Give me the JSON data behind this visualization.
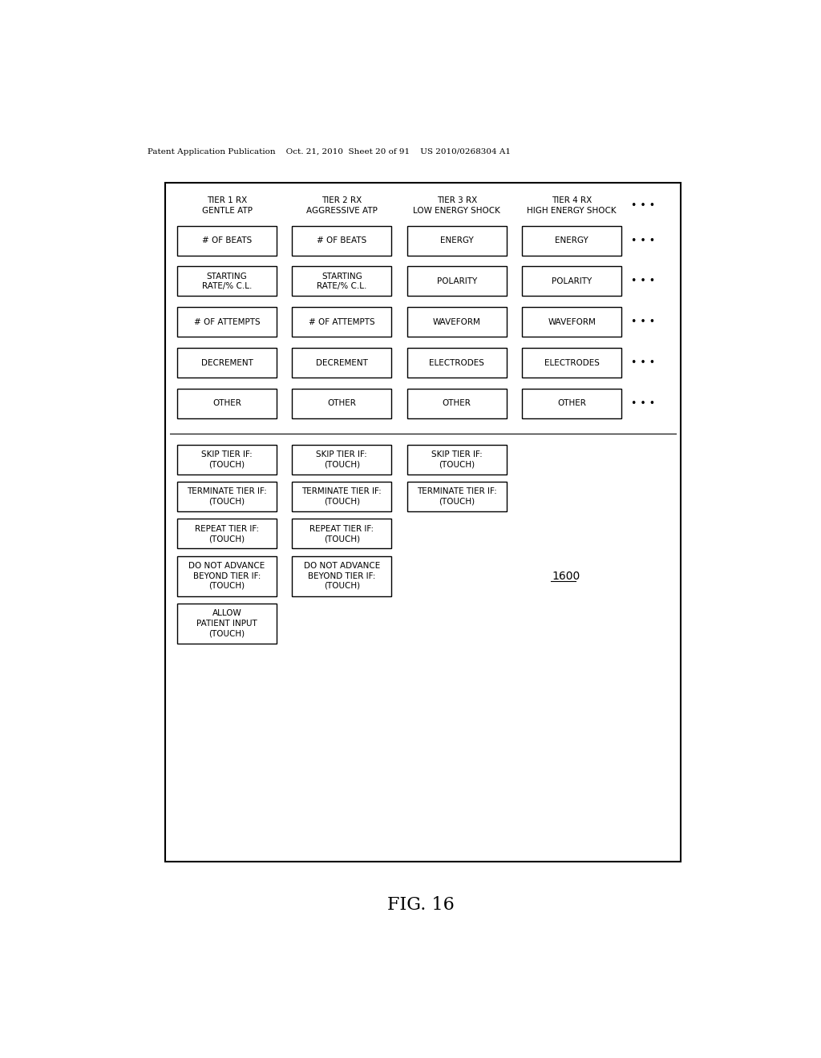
{
  "title": "FIG. 16",
  "figure_number": "1600",
  "header": "Patent Application Publication    Oct. 21, 2010  Sheet 20 of 91    US 2010/0268304 A1",
  "background_color": "#ffffff",
  "text_color": "#000000",
  "col_headers": [
    "TIER 1 RX\nGENTLE ATP",
    "TIER 2 RX\nAGGRESSIVE ATP",
    "TIER 3 RX\nLOW ENERGY SHOCK",
    "TIER 4 RX\nHIGH ENERGY SHOCK"
  ],
  "grid_rows": [
    [
      "# OF BEATS",
      "# OF BEATS",
      "ENERGY",
      "ENERGY"
    ],
    [
      "STARTING\nRATE/% C.L.",
      "STARTING\nRATE/% C.L.",
      "POLARITY",
      "POLARITY"
    ],
    [
      "# OF ATTEMPTS",
      "# OF ATTEMPTS",
      "WAVEFORM",
      "WAVEFORM"
    ],
    [
      "DECREMENT",
      "DECREMENT",
      "ELECTRODES",
      "ELECTRODES"
    ],
    [
      "OTHER",
      "OTHER",
      "OTHER",
      "OTHER"
    ]
  ],
  "bottom_rows": [
    {
      "label": "SKIP TIER IF:\n(TOUCH)",
      "num_cols": 3
    },
    {
      "label": "TERMINATE TIER IF:\n(TOUCH)",
      "num_cols": 3
    },
    {
      "label": "REPEAT TIER IF:\n(TOUCH)",
      "num_cols": 2
    },
    {
      "label": "DO NOT ADVANCE\nBEYOND TIER IF:\n(TOUCH)",
      "num_cols": 2
    },
    {
      "label": "ALLOW\nPATIENT INPUT\n(TOUCH)",
      "num_cols": 1
    }
  ],
  "font_size_header": 7.5,
  "font_size_col_header": 7.5,
  "font_size_cell": 7.5,
  "font_size_title": 16
}
